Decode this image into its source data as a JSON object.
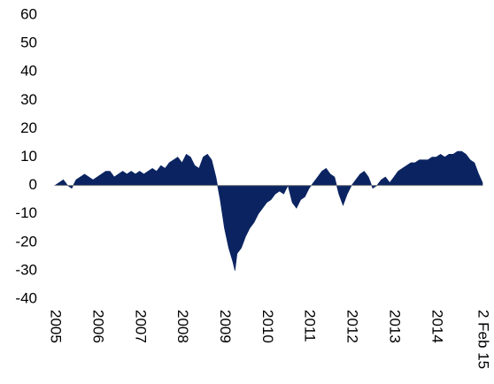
{
  "chart_data": {
    "type": "area",
    "color": "#0b2461",
    "x": [
      2005.0,
      2005.1,
      2005.2,
      2005.3,
      2005.4,
      2005.5,
      2005.6,
      2005.7,
      2005.8,
      2005.9,
      2006.0,
      2006.1,
      2006.2,
      2006.3,
      2006.4,
      2006.5,
      2006.6,
      2006.7,
      2006.8,
      2006.9,
      2007.0,
      2007.1,
      2007.2,
      2007.3,
      2007.4,
      2007.5,
      2007.6,
      2007.7,
      2007.8,
      2007.9,
      2008.0,
      2008.1,
      2008.2,
      2008.3,
      2008.4,
      2008.5,
      2008.6,
      2008.7,
      2008.8,
      2008.9,
      2009.0,
      2009.1,
      2009.2,
      2009.25,
      2009.3,
      2009.4,
      2009.5,
      2009.6,
      2009.7,
      2009.8,
      2009.9,
      2010.0,
      2010.1,
      2010.2,
      2010.3,
      2010.4,
      2010.5,
      2010.6,
      2010.7,
      2010.8,
      2010.9,
      2011.0,
      2011.1,
      2011.2,
      2011.3,
      2011.4,
      2011.5,
      2011.6,
      2011.7,
      2011.8,
      2011.9,
      2012.0,
      2012.1,
      2012.2,
      2012.3,
      2012.4,
      2012.5,
      2012.6,
      2012.7,
      2012.8,
      2012.9,
      2013.0,
      2013.1,
      2013.2,
      2013.3,
      2013.4,
      2013.5,
      2013.6,
      2013.7,
      2013.8,
      2013.9,
      2014.0,
      2014.1,
      2014.2,
      2014.3,
      2014.4,
      2014.5,
      2014.6,
      2014.7,
      2014.8,
      2014.9,
      2015.0,
      2015.09
    ],
    "values": [
      0,
      1,
      2,
      0,
      -1,
      2,
      3,
      4,
      3,
      2,
      3,
      4,
      5,
      5,
      3,
      4,
      5,
      4,
      5,
      4,
      5,
      4,
      5,
      6,
      5,
      7,
      6,
      8,
      9,
      10,
      8,
      11,
      10,
      7,
      6,
      10,
      11,
      9,
      3,
      -5,
      -15,
      -22,
      -27,
      -30,
      -24,
      -22,
      -18,
      -15,
      -13,
      -10,
      -8,
      -6,
      -5,
      -3,
      -2,
      -3,
      0,
      -6,
      -8,
      -5,
      -4,
      -1,
      1,
      3,
      5,
      6,
      4,
      3,
      -3,
      -7,
      -3,
      0,
      2,
      4,
      5,
      3,
      -1,
      0,
      2,
      3,
      1,
      3,
      5,
      6,
      7,
      8,
      8,
      9,
      9,
      9,
      10,
      10,
      11,
      10,
      11,
      11,
      12,
      12,
      11,
      9,
      8,
      4,
      1
    ],
    "xlim": [
      2005,
      2015.09
    ],
    "xticks": [
      2005,
      2006,
      2007,
      2008,
      2009,
      2010,
      2011,
      2012,
      2013,
      2014,
      {
        "value": 2015.09,
        "label": "2 Feb 15"
      }
    ],
    "ylim": [
      -40,
      60
    ],
    "yticks": [
      -40,
      -30,
      -20,
      -10,
      0,
      10,
      20,
      30,
      40,
      50,
      60
    ]
  }
}
